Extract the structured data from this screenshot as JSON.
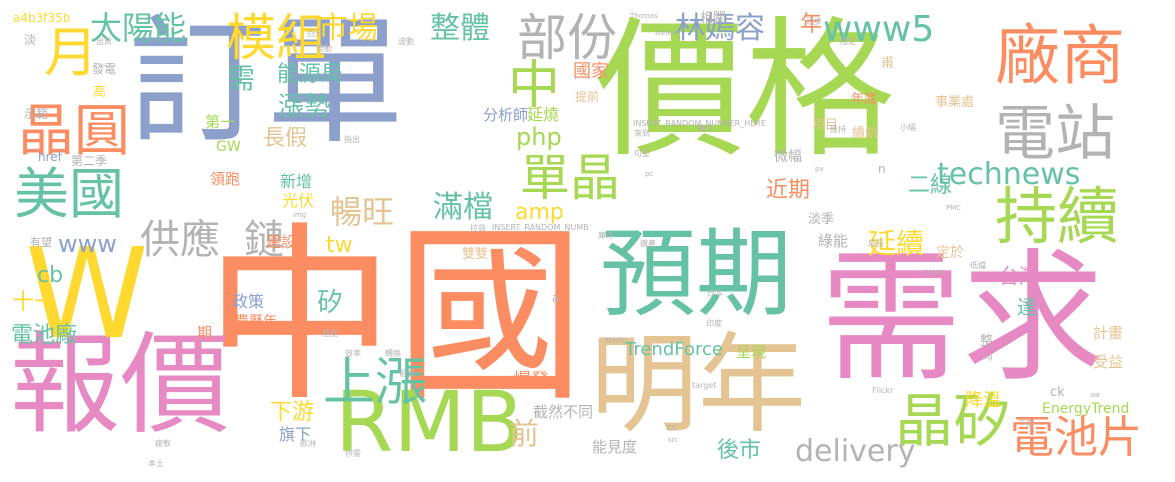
{
  "words": [
    {
      "text": "價格",
      "color": "#a6d854"
    },
    {
      "text": "中國",
      "color": "#fc8d62"
    },
    {
      "text": "訂單",
      "color": "#8da0cb"
    },
    {
      "text": "需求",
      "color": "#e78ac3"
    },
    {
      "text": "報價",
      "color": "#e78ac3"
    },
    {
      "text": "W",
      "color": "#ffd92f"
    },
    {
      "text": "明年",
      "color": "#e5c494"
    },
    {
      "text": "預期",
      "color": "#66c2a5"
    },
    {
      "text": "RMB",
      "color": "#a6d854"
    },
    {
      "text": "廠商",
      "color": "#fc8d62"
    },
    {
      "text": "持續",
      "color": "#a6d854"
    },
    {
      "text": "電站",
      "color": "#b3b3b3"
    },
    {
      "text": "晶圓",
      "color": "#fc8d62"
    },
    {
      "text": "美國",
      "color": "#66c2a5"
    },
    {
      "text": "晶矽",
      "color": "#a6d854"
    },
    {
      "text": "電池片",
      "color": "#fc8d62"
    },
    {
      "text": "上漲",
      "color": "#66c2a5"
    },
    {
      "text": "部份",
      "color": "#b3b3b3"
    },
    {
      "text": "模組",
      "color": "#ffd92f"
    },
    {
      "text": "單晶",
      "color": "#a6d854"
    },
    {
      "text": "中",
      "color": "#a6d854"
    },
    {
      "text": "月",
      "color": "#ffd92f"
    },
    {
      "text": "供應",
      "color": "#b3b3b3"
    },
    {
      "text": "鏈",
      "color": "#b3b3b3"
    },
    {
      "text": "www5",
      "color": "#66c2a5"
    },
    {
      "text": "technews",
      "color": "#66c2a5"
    },
    {
      "text": "delivery",
      "color": "#b3b3b3"
    },
    {
      "text": "市場",
      "color": "#ffd92f"
    },
    {
      "text": "整體",
      "color": "#66c2a5"
    },
    {
      "text": "林嫣容",
      "color": "#8da0cb"
    },
    {
      "text": "太陽能",
      "color": "#66c2a5"
    },
    {
      "text": "滿檔",
      "color": "#66c2a5"
    },
    {
      "text": "暢旺",
      "color": "#e5c494"
    },
    {
      "text": "延續",
      "color": "#ffd92f"
    },
    {
      "text": "前",
      "color": "#e5c494"
    },
    {
      "text": "需",
      "color": "#66c2a5"
    },
    {
      "text": "漲勢",
      "color": "#66c2a5"
    },
    {
      "text": "www",
      "color": "#8da0cb"
    },
    {
      "text": "cb",
      "color": "#66c2a5"
    },
    {
      "text": "矽",
      "color": "#66c2a5"
    },
    {
      "text": "下游",
      "color": "#ffd92f"
    },
    {
      "text": "php",
      "color": "#a6d854"
    },
    {
      "text": "amp",
      "color": "#ffd92f"
    },
    {
      "text": "tw",
      "color": "#ffd92f"
    },
    {
      "text": "二線",
      "color": "#66c2a5"
    },
    {
      "text": "近期",
      "color": "#fc8d62"
    },
    {
      "text": "年",
      "color": "#fc8d62"
    },
    {
      "text": "能源局",
      "color": "#66c2a5"
    },
    {
      "text": "長假",
      "color": "#e5c494"
    },
    {
      "text": "TrendForce",
      "color": "#66c2a5"
    },
    {
      "text": "國家",
      "color": "#fc8d62"
    },
    {
      "text": "台灣",
      "color": "#e78ac3"
    },
    {
      "text": "電池廠",
      "color": "#66c2a5"
    },
    {
      "text": "十一",
      "color": "#ffd92f"
    },
    {
      "text": "後市",
      "color": "#66c2a5"
    },
    {
      "text": "旗下",
      "color": "#8da0cb"
    },
    {
      "text": "爆發",
      "color": "#fc8d62"
    },
    {
      "text": "降溫",
      "color": "#ffd92f"
    },
    {
      "text": "延燒",
      "color": "#a6d854"
    },
    {
      "text": "分析師",
      "color": "#8da0cb"
    },
    {
      "text": "新增",
      "color": "#66c2a5"
    },
    {
      "text": "光伏",
      "color": "#ffd92f"
    },
    {
      "text": "第一",
      "color": "#a6d854"
    },
    {
      "text": "領跑",
      "color": "#fc8d62"
    },
    {
      "text": "政策",
      "color": "#8da0cb"
    },
    {
      "text": "農曆年",
      "color": "#fc8d62"
    },
    {
      "text": "建設",
      "color": "#fc8d62"
    },
    {
      "text": "呈現",
      "color": "#a6d854"
    },
    {
      "text": "截然不同",
      "color": "#b3b3b3"
    },
    {
      "text": "能見度",
      "color": "#b3b3b3"
    },
    {
      "text": "微幅",
      "color": "#b3b3b3"
    },
    {
      "text": "綠能",
      "color": "#b3b3b3"
    },
    {
      "text": "淡季",
      "color": "#b3b3b3"
    },
    {
      "text": "定於",
      "color": "#e5c494"
    },
    {
      "text": "達",
      "color": "#66c2a5"
    },
    {
      "text": "計畫",
      "color": "#e5c494"
    },
    {
      "text": "受益",
      "color": "#e5c494"
    },
    {
      "text": "EnergyTrend",
      "color": "#a6d854"
    },
    {
      "text": "ck",
      "color": "#b3b3b3"
    },
    {
      "text": "事業處",
      "color": "#e5c494"
    },
    {
      "text": "年底",
      "color": "#fc8d62"
    },
    {
      "text": "項目",
      "color": "#e5c494"
    },
    {
      "text": "續航",
      "color": "#e5c494"
    },
    {
      "text": "提前",
      "color": "#e5c494"
    },
    {
      "text": "相關",
      "color": "#b3b3b3"
    },
    {
      "text": "GW",
      "color": "#a6d854"
    },
    {
      "text": "第二季",
      "color": "#b3b3b3"
    },
    {
      "text": "href",
      "color": "#8da0cb"
    },
    {
      "text": "示範",
      "color": "#b3b3b3"
    },
    {
      "text": "發電",
      "color": "#b3b3b3"
    },
    {
      "text": "高",
      "color": "#ffd92f"
    },
    {
      "text": "有望",
      "color": "#b3b3b3"
    },
    {
      "text": "a4b3f35b",
      "color": "#ffd92f"
    },
    {
      "text": "淡",
      "color": "#b3b3b3"
    },
    {
      "text": "整",
      "color": "#b3b3b3"
    },
    {
      "text": "甫",
      "color": "#e5c494"
    },
    {
      "text": "n",
      "color": "#b3b3b3"
    },
    {
      "text": "a",
      "color": "#b3b3b3"
    },
    {
      "text": "INSERT_RANDOM_NUMBER_HERE",
      "color": "#b3b3b3"
    },
    {
      "text": "INSERT_RANDOM_NUMB",
      "color": "#b3b3b3"
    },
    {
      "text": "期",
      "color": "#fc8d62"
    },
    {
      "text": "雙雙",
      "color": "#e5c494"
    },
    {
      "text": "Flickr",
      "color": "#b3b3b3"
    },
    {
      "text": "target",
      "color": "#b3b3b3"
    },
    {
      "text": "kg",
      "color": "#b3b3b3"
    },
    {
      "text": "Thomas",
      "color": "#b3b3b3"
    },
    {
      "text": "zoneid",
      "color": "#b3b3b3"
    },
    {
      "text": "Kohler",
      "color": "#b3b3b3"
    },
    {
      "text": "CC",
      "color": "#b3b3b3"
    },
    {
      "text": "src",
      "color": "#b3b3b3"
    },
    {
      "text": "aw",
      "color": "#b3b3b3"
    },
    {
      "text": "blank",
      "color": "#b3b3b3"
    },
    {
      "text": "img",
      "color": "#b3b3b3"
    },
    {
      "text": "PMC",
      "color": "#b3b3b3"
    },
    {
      "text": "pc",
      "color": "#b3b3b3"
    },
    {
      "text": "pv",
      "color": "#b3b3b3"
    },
    {
      "text": "出貨",
      "color": "#b3b3b3"
    },
    {
      "text": "波動",
      "color": "#b3b3b3"
    },
    {
      "text": "疲軟",
      "color": "#b3b3b3"
    },
    {
      "text": "歐洲",
      "color": "#b3b3b3"
    },
    {
      "text": "日本",
      "color": "#b3b3b3"
    },
    {
      "text": "印度",
      "color": "#b3b3b3"
    },
    {
      "text": "本土",
      "color": "#b3b3b3"
    },
    {
      "text": "影響",
      "color": "#b3b3b3"
    },
    {
      "text": "成長",
      "color": "#b3b3b3"
    },
    {
      "text": "擴產",
      "color": "#b3b3b3"
    },
    {
      "text": "庫存",
      "color": "#b3b3b3"
    },
    {
      "text": "產能",
      "color": "#b3b3b3"
    },
    {
      "text": "轉換",
      "color": "#b3b3b3"
    },
    {
      "text": "效率",
      "color": "#b3b3b3"
    },
    {
      "text": "供需",
      "color": "#b3b3b3"
    },
    {
      "text": "拉貨",
      "color": "#b3b3b3"
    },
    {
      "text": "帶動",
      "color": "#b3b3b3"
    },
    {
      "text": "指出",
      "color": "#b3b3b3"
    },
    {
      "text": "下調",
      "color": "#b3b3b3"
    },
    {
      "text": "回升",
      "color": "#b3b3b3"
    },
    {
      "text": "小幅",
      "color": "#b3b3b3"
    },
    {
      "text": "情況",
      "color": "#b3b3b3"
    },
    {
      "text": "來到",
      "color": "#b3b3b3"
    },
    {
      "text": "維持",
      "color": "#b3b3b3"
    },
    {
      "text": "低檔",
      "color": "#b3b3b3"
    },
    {
      "text": "可望",
      "color": "#b3b3b3"
    },
    {
      "text": "逐步",
      "color": "#b3b3b3"
    },
    {
      "text": "穩定",
      "color": "#b3b3b3"
    }
  ]
}
